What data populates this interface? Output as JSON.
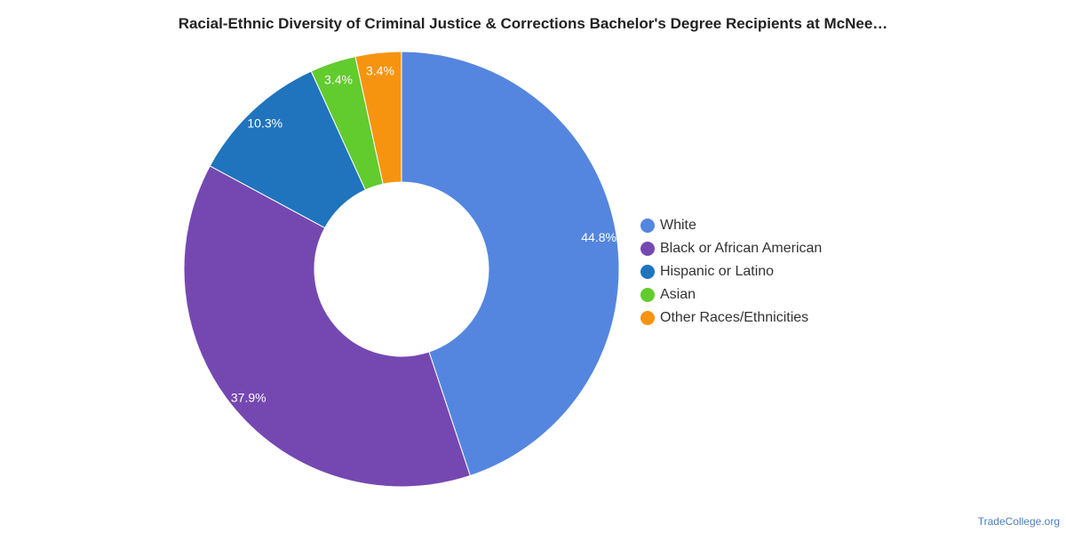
{
  "chart_data": {
    "type": "pie",
    "title": "Racial-Ethnic Diversity of Criminal Justice & Corrections Bachelor's Degree Recipients at McNee…",
    "categories": [
      "White",
      "Black or African American",
      "Hispanic or Latino",
      "Asian",
      "Other Races/Ethnicities"
    ],
    "values": [
      44.8,
      37.9,
      10.3,
      3.4,
      3.4
    ],
    "labels": [
      "44.8%",
      "37.9%",
      "10.3%",
      "3.4%",
      "3.4%"
    ],
    "colors": [
      "#5486e0",
      "#7548b1",
      "#1f74bd",
      "#62cb2e",
      "#f7940f"
    ],
    "legend_position": "right",
    "style": "donut"
  },
  "source": "TradeCollege.org"
}
